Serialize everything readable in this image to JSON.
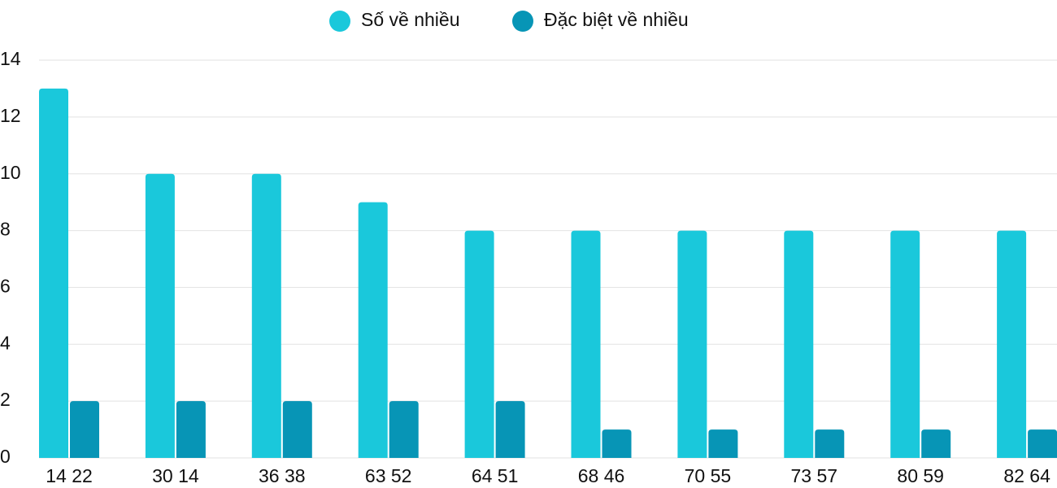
{
  "chart_data": {
    "type": "bar",
    "categories": [
      "14 22",
      "30 14",
      "36 38",
      "63 52",
      "64 51",
      "68 46",
      "70 55",
      "73 57",
      "80 59",
      "82 64"
    ],
    "series": [
      {
        "name": "Số về nhiều",
        "color": "#1ac8db",
        "values": [
          13,
          10,
          10,
          9,
          8,
          8,
          8,
          8,
          8,
          8
        ]
      },
      {
        "name": "Đặc biệt về nhiều",
        "color": "#0795b6",
        "values": [
          2,
          2,
          2,
          2,
          2,
          1,
          1,
          1,
          1,
          1
        ]
      }
    ],
    "ylim": [
      0,
      14
    ],
    "yticks": [
      0,
      2,
      4,
      6,
      8,
      10,
      12,
      14
    ],
    "grid": true,
    "legend": "top"
  }
}
